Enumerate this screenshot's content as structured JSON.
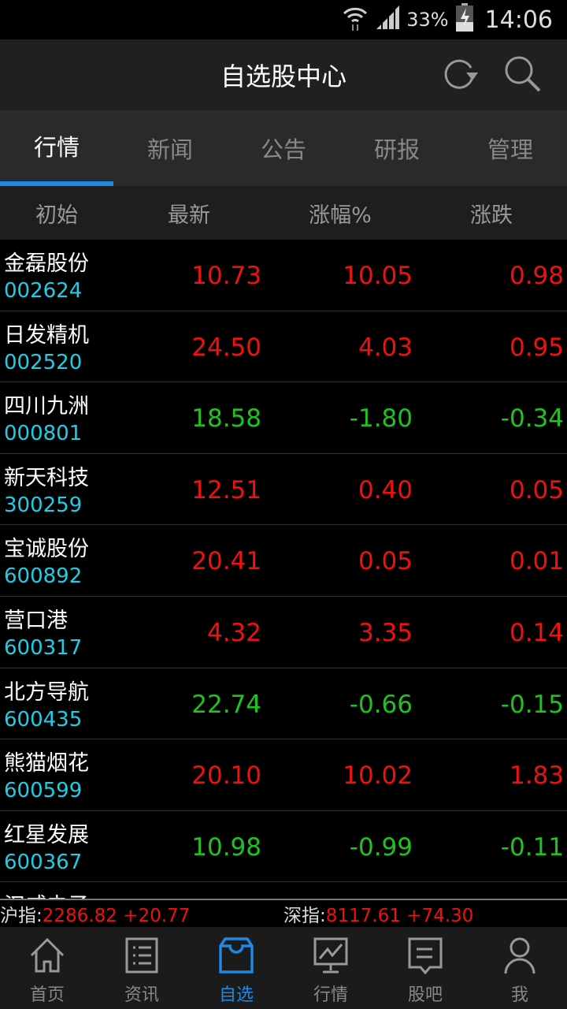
{
  "status": {
    "battery": "33%",
    "time": "14:06"
  },
  "header": {
    "title": "自选股中心"
  },
  "tabs": [
    "行情",
    "新闻",
    "公告",
    "研报",
    "管理"
  ],
  "columns": [
    "初始",
    "最新",
    "涨幅%",
    "涨跌"
  ],
  "stocks": [
    {
      "name": "金磊股份",
      "code": "002624",
      "price": "10.73",
      "pct": "10.05",
      "chg": "0.98",
      "dir": "up"
    },
    {
      "name": "日发精机",
      "code": "002520",
      "price": "24.50",
      "pct": "4.03",
      "chg": "0.95",
      "dir": "up"
    },
    {
      "name": "四川九洲",
      "code": "000801",
      "price": "18.58",
      "pct": "-1.80",
      "chg": "-0.34",
      "dir": "down"
    },
    {
      "name": "新天科技",
      "code": "300259",
      "price": "12.51",
      "pct": "0.40",
      "chg": "0.05",
      "dir": "up"
    },
    {
      "name": "宝诚股份",
      "code": "600892",
      "price": "20.41",
      "pct": "0.05",
      "chg": "0.01",
      "dir": "up"
    },
    {
      "name": "营口港",
      "code": "600317",
      "price": "4.32",
      "pct": "3.35",
      "chg": "0.14",
      "dir": "up"
    },
    {
      "name": "北方导航",
      "code": "600435",
      "price": "22.74",
      "pct": "-0.66",
      "chg": "-0.15",
      "dir": "down"
    },
    {
      "name": "熊猫烟花",
      "code": "600599",
      "price": "20.10",
      "pct": "10.02",
      "chg": "1.83",
      "dir": "up"
    },
    {
      "name": "红星发展",
      "code": "600367",
      "price": "10.98",
      "pct": "-0.99",
      "chg": "-0.11",
      "dir": "down"
    },
    {
      "name": "汉威电子",
      "code": "",
      "price": "",
      "pct": "",
      "chg": "",
      "dir": "up"
    }
  ],
  "indices": {
    "sh_label": "沪指:",
    "sh_value": "2286.82 +20.77",
    "sz_label": "深指:",
    "sz_value": "8117.61 +74.30"
  },
  "nav": [
    {
      "label": "首页",
      "icon": "home-icon"
    },
    {
      "label": "资讯",
      "icon": "list-icon"
    },
    {
      "label": "自选",
      "icon": "inbox-icon"
    },
    {
      "label": "行情",
      "icon": "chart-icon"
    },
    {
      "label": "股吧",
      "icon": "chat-icon"
    },
    {
      "label": "我",
      "icon": "user-icon"
    }
  ],
  "colors": {
    "accent": "#1e88e5",
    "up": "#f01010",
    "down": "#1ec41e",
    "code": "#1ccfe6"
  }
}
